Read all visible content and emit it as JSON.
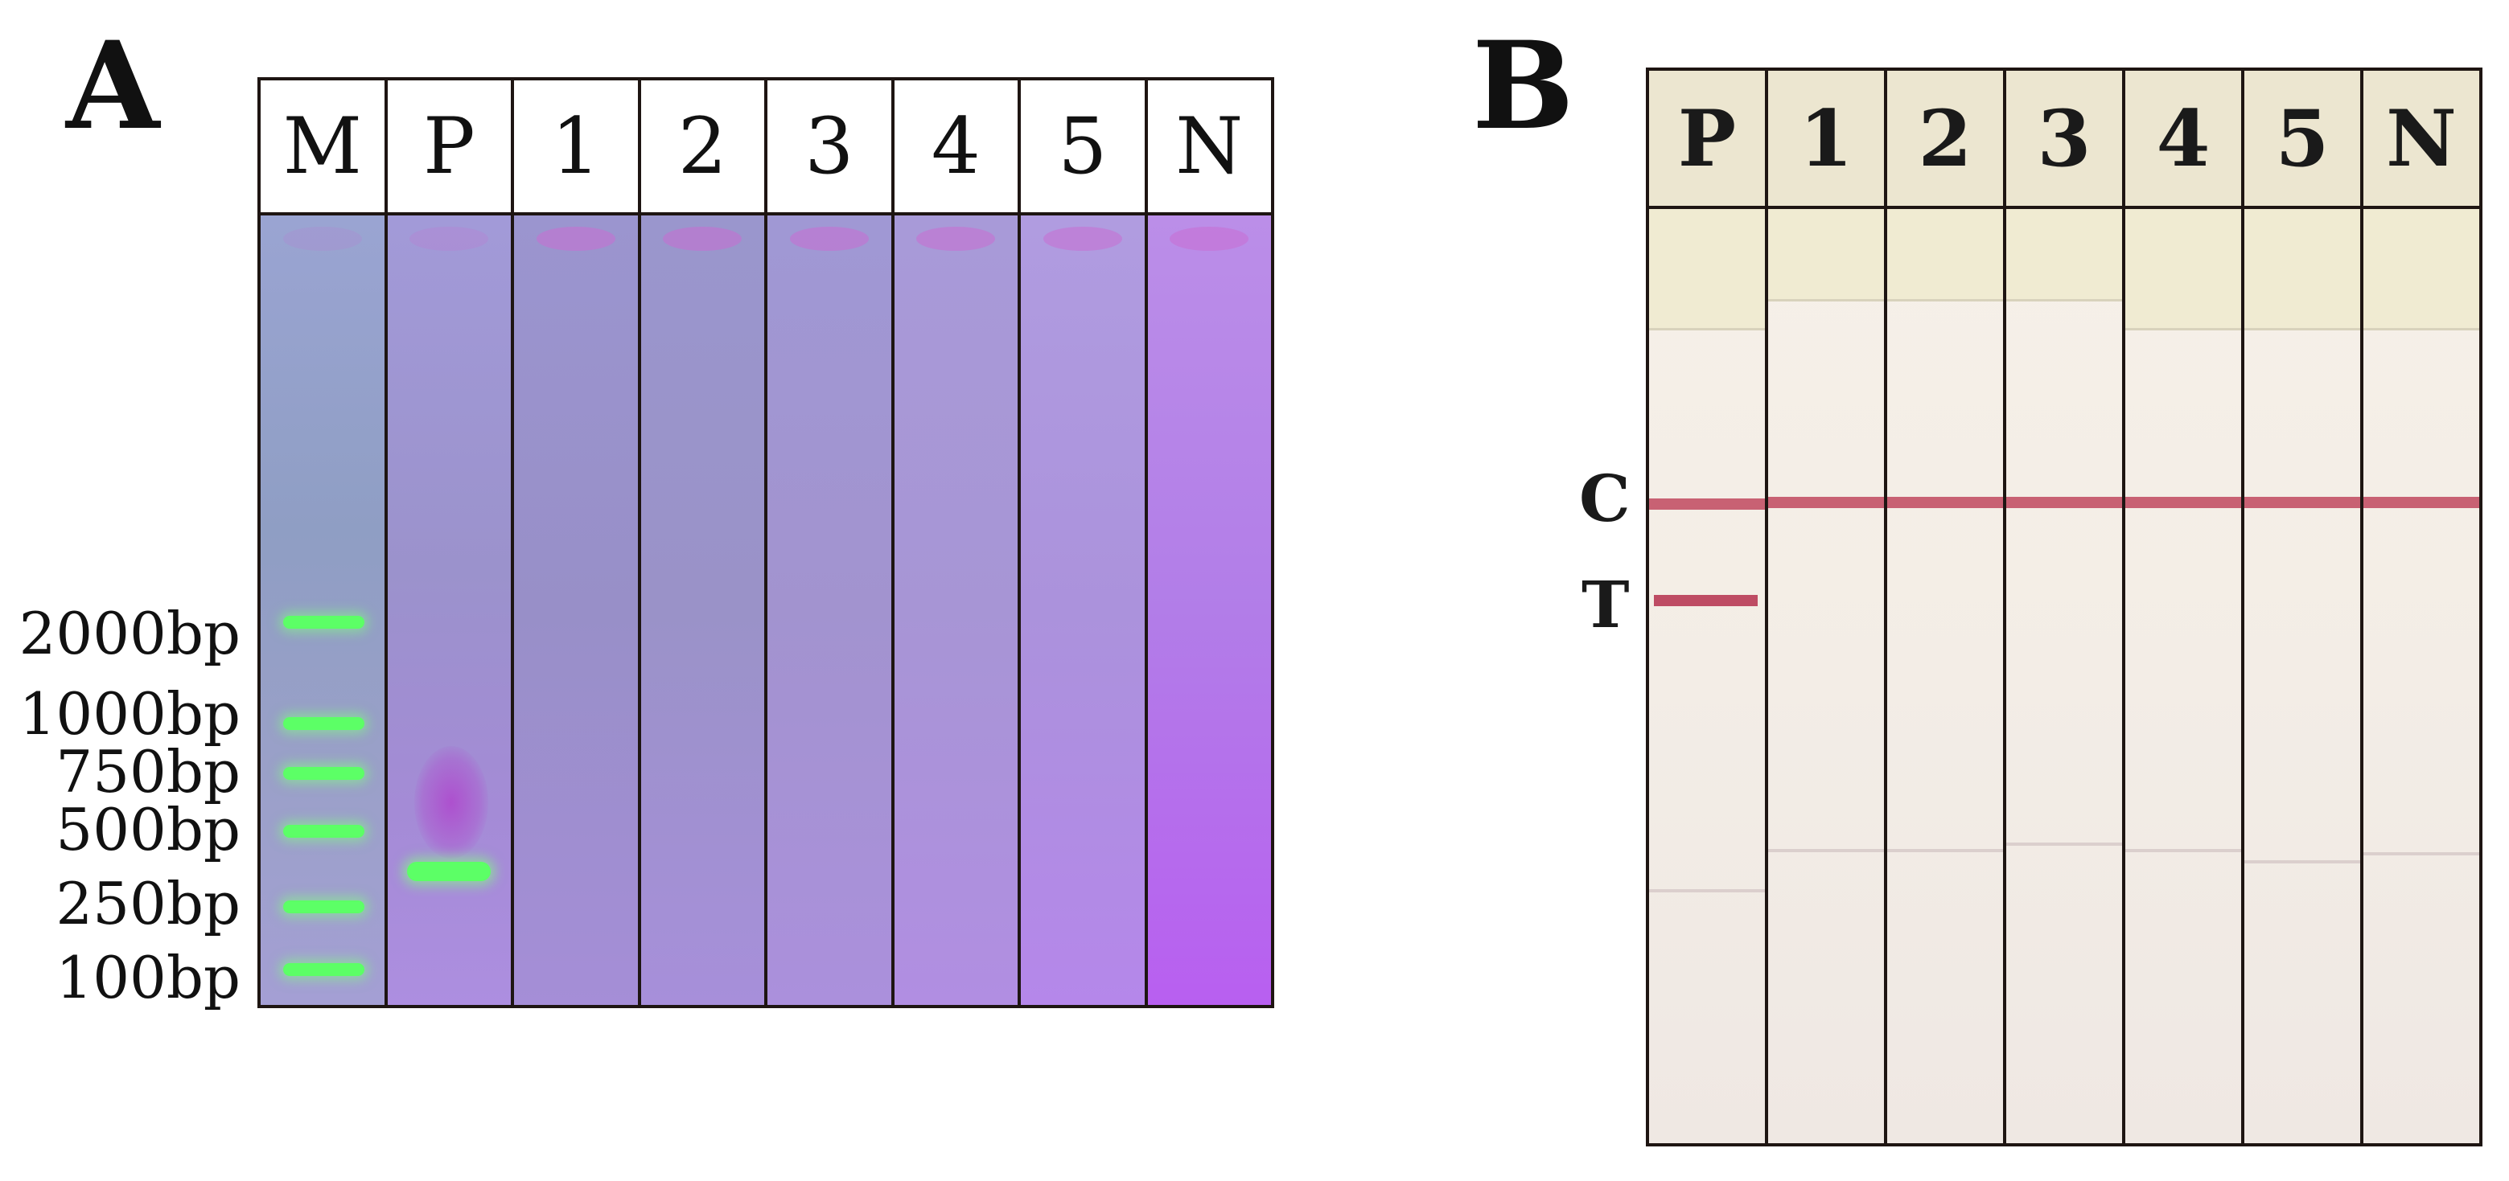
{
  "panel_a": {
    "letter": "A",
    "lanes": [
      "M",
      "P",
      "1",
      "2",
      "3",
      "4",
      "5",
      "N"
    ],
    "size_markers": [
      "2000bp",
      "1000bp",
      "750bp",
      "500bp",
      "250bp",
      "100bp"
    ],
    "band_color": "#5cff66",
    "gel_color": "#a092d2"
  },
  "panel_b": {
    "letter": "B",
    "lanes": [
      "P",
      "1",
      "2",
      "3",
      "4",
      "5",
      "N"
    ],
    "line_labels": {
      "control": "C",
      "test": "T"
    },
    "line_color": "#c0485e",
    "test_line_lanes": [
      "P"
    ]
  }
}
